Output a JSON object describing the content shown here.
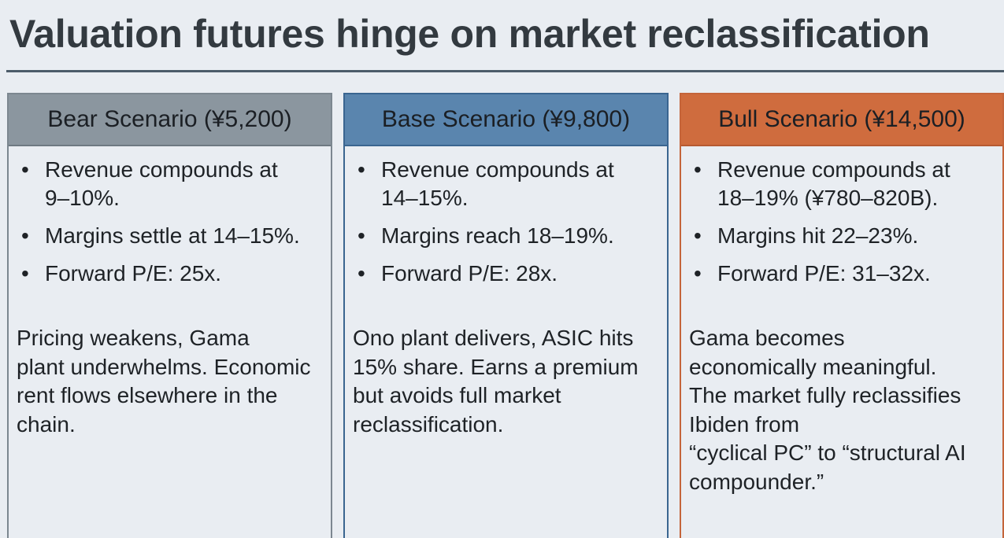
{
  "title": "Valuation futures hinge on market reclassification",
  "colors": {
    "bear": "#8b969f",
    "base": "#5a85ae",
    "bull": "#cf6c3e",
    "rule": "#4c5c6a"
  },
  "scenarios": [
    {
      "header": "Bear Scenario (¥5,200)",
      "bullets": [
        "Revenue compounds at 9–10%.",
        "Margins settle at 14–15%.",
        "Forward P/E: 25x."
      ],
      "summary_lines": [
        "Pricing weakens, Gama",
        "plant underwhelms. Economic",
        "rent flows elsewhere in the",
        "chain."
      ]
    },
    {
      "header": "Base Scenario (¥9,800)",
      "bullets": [
        "Revenue compounds at 14–15%.",
        "Margins reach 18–19%.",
        "Forward P/E: 28x."
      ],
      "summary_lines": [
        "Ono plant delivers, ASIC hits",
        "15% share. Earns a premium",
        "but avoids full market",
        "reclassification."
      ]
    },
    {
      "header": "Bull Scenario (¥14,500)",
      "bullets": [
        "Revenue compounds at 18–19% (¥780–820B).",
        "Margins hit 22–23%.",
        "Forward P/E: 31–32x."
      ],
      "summary_lines": [
        "Gama becomes",
        "economically meaningful.",
        "The market fully reclassifies",
        "Ibiden from",
        "“cyclical PC” to “structural AI",
        "compounder.”"
      ]
    }
  ]
}
